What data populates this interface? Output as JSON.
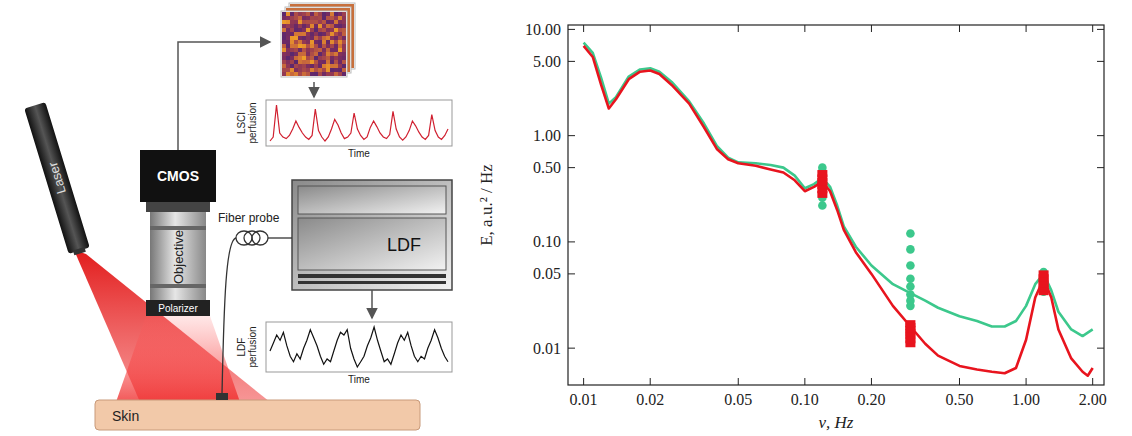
{
  "diagram": {
    "laser": "Laser",
    "camera": "CMOS",
    "objective": "Objective",
    "polarizer": "Polarizer",
    "skin": "Skin",
    "fiber_probe": "Fiber probe",
    "ldf_device": "LDF",
    "lsci_plot": {
      "ylabel": "LSCI perfusion",
      "xlabel": "Time",
      "values": [
        0.45,
        0.5,
        0.9,
        0.55,
        0.5,
        0.48,
        0.52,
        0.6,
        0.7,
        0.62,
        0.55,
        0.5,
        0.47,
        0.52,
        0.85,
        0.58,
        0.5,
        0.45,
        0.5,
        0.6,
        0.72,
        0.65,
        0.55,
        0.48,
        0.5,
        0.55,
        0.8,
        0.6,
        0.52,
        0.47,
        0.5,
        0.62,
        0.7,
        0.63,
        0.55,
        0.5,
        0.48,
        0.53,
        0.82,
        0.6,
        0.5,
        0.46,
        0.5,
        0.58,
        0.7,
        0.64,
        0.56,
        0.5,
        0.47,
        0.52,
        0.78,
        0.58,
        0.5,
        0.47,
        0.52,
        0.6
      ]
    },
    "ldf_plot": {
      "ylabel": "LDF perfusion",
      "xlabel": "Time",
      "values": [
        0.5,
        0.65,
        0.8,
        0.7,
        0.85,
        0.6,
        0.4,
        0.3,
        0.45,
        0.35,
        0.55,
        0.7,
        0.9,
        0.75,
        0.6,
        0.4,
        0.25,
        0.35,
        0.3,
        0.5,
        0.7,
        0.85,
        0.8,
        0.9,
        0.55,
        0.35,
        0.2,
        0.3,
        0.4,
        0.6,
        0.75,
        0.95,
        0.7,
        0.5,
        0.3,
        0.35,
        0.25,
        0.45,
        0.65,
        0.8,
        0.7,
        0.85,
        0.6,
        0.4,
        0.3,
        0.4,
        0.35,
        0.55,
        0.7,
        0.9,
        0.75,
        0.55,
        0.4,
        0.3
      ]
    }
  },
  "chart_data": {
    "type": "line",
    "log": true,
    "grid": false,
    "x_label": "ν, Hz",
    "y_label": "E, a.u.² / Hz",
    "xlim": [
      0.0085,
      2.25
    ],
    "ylim": [
      0.0045,
      11
    ],
    "xticks": [
      0.01,
      0.02,
      0.05,
      {
        "value": 0.1,
        "label": "0.10"
      },
      {
        "value": 0.2,
        "label": "0.20"
      },
      {
        "value": 0.5,
        "label": "0.50"
      },
      {
        "value": 1,
        "label": "1.00"
      },
      {
        "value": 2,
        "label": "2.00"
      }
    ],
    "yticks": [
      0.01,
      0.05,
      {
        "value": 0.1,
        "label": "0.10"
      },
      {
        "value": 0.5,
        "label": "0.50"
      },
      {
        "value": 1,
        "label": "1.00"
      },
      {
        "value": 5,
        "label": "5.00"
      },
      {
        "value": 10,
        "label": "10.00"
      }
    ],
    "series": [
      {
        "type": "line",
        "color": "#3cc88c",
        "line_style": "solid",
        "x": [
          0.01,
          0.011,
          0.012,
          0.013,
          0.014,
          0.016,
          0.018,
          0.02,
          0.022,
          0.025,
          0.03,
          0.035,
          0.04,
          0.045,
          0.05,
          0.06,
          0.07,
          0.08,
          0.09,
          0.1,
          0.11,
          0.12,
          0.13,
          0.14,
          0.15,
          0.17,
          0.2,
          0.25,
          0.3,
          0.35,
          0.4,
          0.5,
          0.6,
          0.7,
          0.8,
          0.9,
          1.0,
          1.1,
          1.2,
          1.3,
          1.4,
          1.6,
          1.8,
          1.9,
          2.0
        ],
        "values": [
          7.5,
          6,
          3.5,
          2.0,
          2.3,
          3.6,
          4.2,
          4.3,
          4.0,
          3.2,
          2.1,
          1.3,
          0.8,
          0.62,
          0.56,
          0.55,
          0.53,
          0.5,
          0.42,
          0.32,
          0.35,
          0.4,
          0.33,
          0.22,
          0.14,
          0.09,
          0.06,
          0.04,
          0.033,
          0.028,
          0.024,
          0.02,
          0.018,
          0.016,
          0.016,
          0.018,
          0.025,
          0.04,
          0.05,
          0.035,
          0.022,
          0.015,
          0.013,
          0.014,
          0.015
        ]
      },
      {
        "type": "line",
        "color": "#e8141e",
        "line_style": "solid",
        "x": [
          0.01,
          0.011,
          0.012,
          0.013,
          0.014,
          0.016,
          0.018,
          0.02,
          0.022,
          0.025,
          0.03,
          0.035,
          0.04,
          0.045,
          0.05,
          0.06,
          0.07,
          0.08,
          0.09,
          0.1,
          0.11,
          0.12,
          0.13,
          0.14,
          0.15,
          0.17,
          0.2,
          0.25,
          0.3,
          0.35,
          0.4,
          0.5,
          0.6,
          0.7,
          0.8,
          0.9,
          1.0,
          1.1,
          1.2,
          1.3,
          1.4,
          1.6,
          1.8,
          1.9,
          2.0
        ],
        "values": [
          7.0,
          5.5,
          3.0,
          1.8,
          2.2,
          3.4,
          4.0,
          4.1,
          3.8,
          3.0,
          2.0,
          1.2,
          0.75,
          0.6,
          0.55,
          0.52,
          0.48,
          0.45,
          0.38,
          0.3,
          0.33,
          0.37,
          0.3,
          0.2,
          0.13,
          0.08,
          0.05,
          0.025,
          0.016,
          0.011,
          0.0085,
          0.0068,
          0.0063,
          0.006,
          0.0058,
          0.0065,
          0.012,
          0.03,
          0.045,
          0.03,
          0.015,
          0.008,
          0.006,
          0.0055,
          0.0065
        ]
      },
      {
        "type": "scatter",
        "color": "#3cc88c",
        "marker": "circle",
        "x": [
          0.12,
          0.12,
          0.12,
          0.12,
          0.12,
          0.12,
          0.12,
          0.12,
          0.3,
          0.3,
          0.3,
          0.3,
          0.3,
          0.3,
          0.3,
          0.3,
          1.2,
          1.2,
          1.2,
          1.2,
          1.2
        ],
        "values": [
          0.22,
          0.26,
          0.3,
          0.34,
          0.38,
          0.42,
          0.46,
          0.5,
          0.12,
          0.085,
          0.06,
          0.045,
          0.038,
          0.032,
          0.028,
          0.025,
          0.052,
          0.047,
          0.043,
          0.038,
          0.034
        ]
      },
      {
        "type": "scatter",
        "color": "#e8141e",
        "marker": "square",
        "x": [
          0.12,
          0.12,
          0.12,
          0.12,
          0.12,
          0.12,
          0.3,
          0.3,
          0.3,
          0.3,
          0.3,
          0.3,
          0.3,
          1.2,
          1.2,
          1.2,
          1.2,
          1.2,
          1.2
        ],
        "values": [
          0.28,
          0.31,
          0.34,
          0.37,
          0.4,
          0.44,
          0.011,
          0.012,
          0.013,
          0.014,
          0.015,
          0.016,
          0.017,
          0.034,
          0.037,
          0.04,
          0.043,
          0.046,
          0.05
        ]
      }
    ]
  }
}
